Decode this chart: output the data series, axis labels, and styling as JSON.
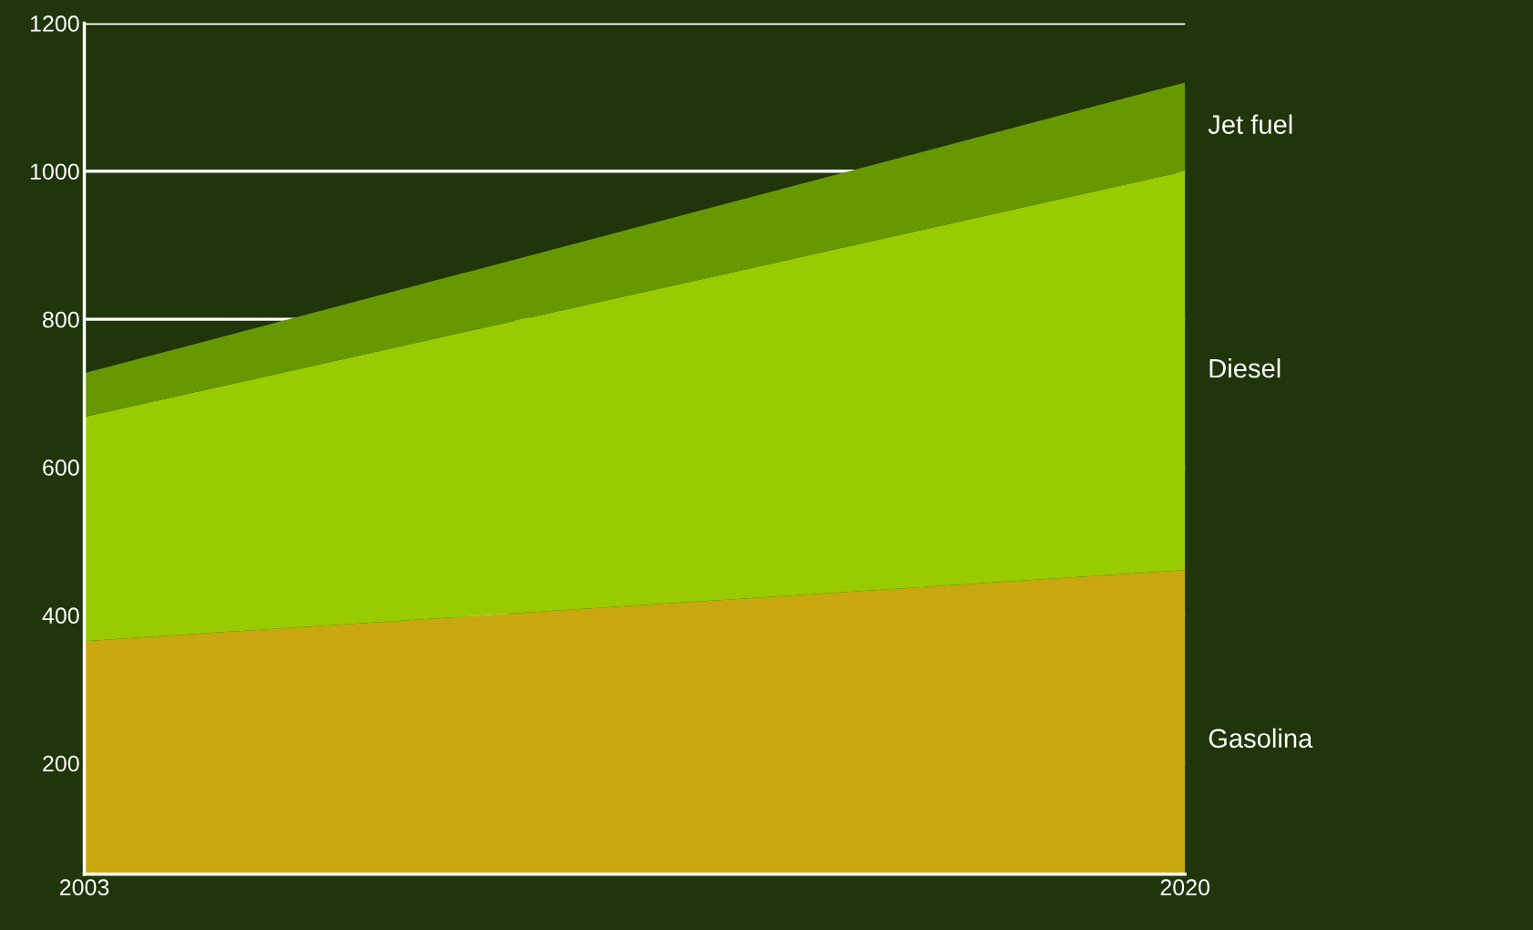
{
  "chart_data": {
    "type": "area",
    "stacked": true,
    "x": [
      2003,
      2020
    ],
    "xlim": [
      2003,
      2020
    ],
    "xticks": [
      2003,
      2020
    ],
    "ylim": [
      50,
      1200
    ],
    "yticks": [
      200,
      400,
      600,
      800,
      1000,
      1200
    ],
    "grid": "y",
    "legend": false,
    "series": [
      {
        "name": "Gasolina",
        "color": "#c8a80e",
        "values": [
          365,
          461
        ]
      },
      {
        "name": "Diesel",
        "color": "#99cc00",
        "values": [
          303,
          539
        ]
      },
      {
        "name": "Jet fuel",
        "color": "#669900",
        "values": [
          59,
          120
        ]
      }
    ]
  }
}
